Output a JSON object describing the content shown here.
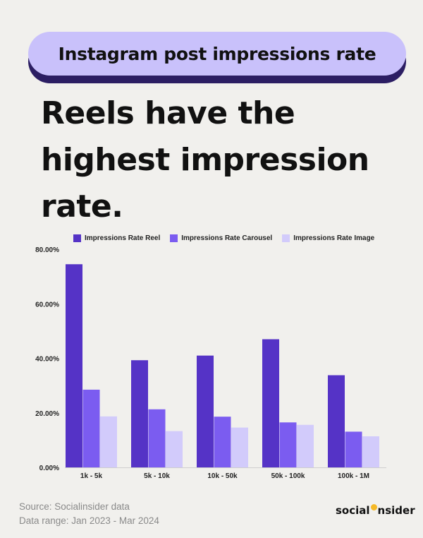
{
  "header": {
    "pill_title": "Instagram post impressions rate",
    "headline": "Reels have the highest impression rate."
  },
  "chart_data": {
    "type": "bar",
    "categories": [
      "1k - 5k",
      "5k - 10k",
      "10k - 50k",
      "50k - 100k",
      "100k - 1M"
    ],
    "series": [
      {
        "name": "Impressions Rate Reel",
        "color": "#5533c6",
        "values": [
          74.5,
          39.3,
          41.0,
          47.0,
          33.8
        ]
      },
      {
        "name": "Impressions Rate Carousel",
        "color": "#7b5cf0",
        "values": [
          28.5,
          21.3,
          18.6,
          16.5,
          13.1
        ]
      },
      {
        "name": "Impressions Rate Image",
        "color": "#d2cbfb",
        "values": [
          18.7,
          13.3,
          14.6,
          15.6,
          11.4
        ]
      }
    ],
    "yticks": [
      "0.00%",
      "20.00%",
      "40.00%",
      "60.00%",
      "80.00%"
    ],
    "ylim": [
      0,
      80
    ],
    "legend_position": "top",
    "grid": false
  },
  "footer": {
    "source": "Source: Socialinsider data",
    "range": "Data range: Jan 2023 - Mar 2024"
  },
  "brand": {
    "logo_left": "social",
    "logo_right": "nsider"
  }
}
